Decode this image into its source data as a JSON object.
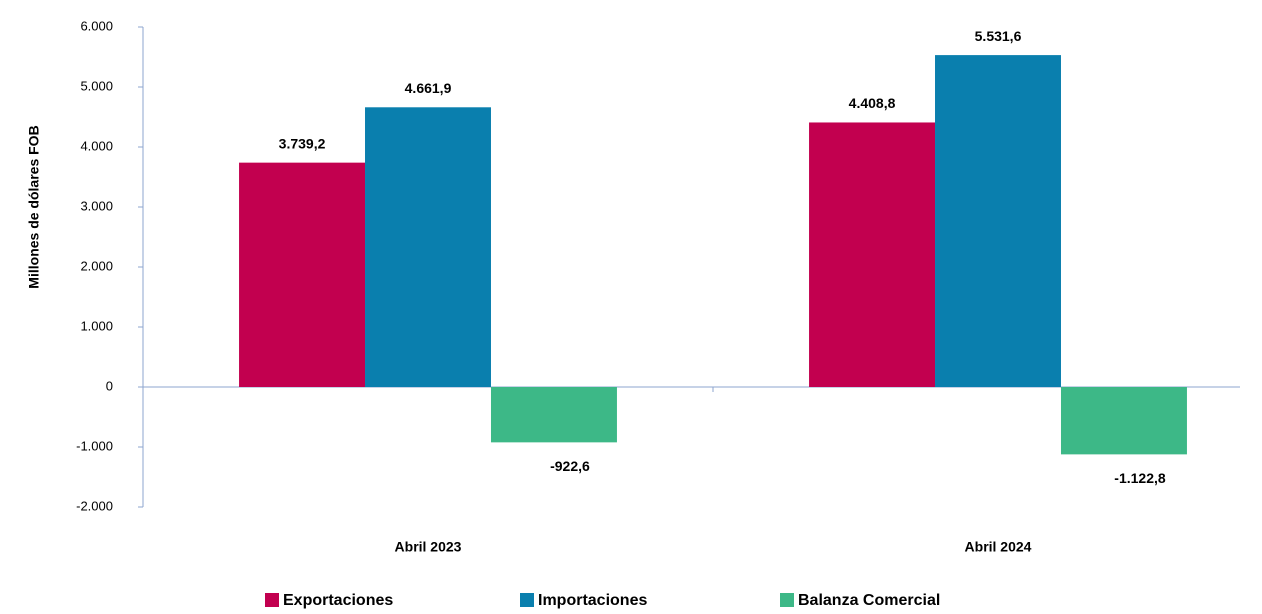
{
  "chart_data": {
    "type": "bar",
    "y_label": "Millones de dólares FOB",
    "categories": [
      "Abril 2023",
      "Abril 2024"
    ],
    "series": [
      {
        "name": "Exportaciones",
        "color": "#c2004f",
        "values": [
          3739.2,
          4408.8
        ],
        "value_labels": [
          "3.739,2",
          "4.408,8"
        ]
      },
      {
        "name": "Importaciones",
        "color": "#0a7fae",
        "values": [
          4661.9,
          5531.6
        ],
        "value_labels": [
          "4.661,9",
          "5.531,6"
        ]
      },
      {
        "name": "Balanza Comercial",
        "color": "#3db887",
        "values": [
          -922.6,
          -1122.8
        ],
        "value_labels": [
          "-922,6",
          "-1.122,8"
        ]
      }
    ],
    "ylim": [
      -2000,
      6000
    ],
    "yticks": [
      {
        "value": -2000,
        "label": "-2.000"
      },
      {
        "value": -1000,
        "label": "-1.000"
      },
      0,
      {
        "value": 1000,
        "label": "1.000"
      },
      {
        "value": 2000,
        "label": "2.000"
      },
      {
        "value": 3000,
        "label": "3.000"
      },
      {
        "value": 4000,
        "label": "4.000"
      },
      {
        "value": 5000,
        "label": "5.000"
      },
      {
        "value": 6000,
        "label": "6.000"
      }
    ],
    "grid": false,
    "legend": "bottom"
  }
}
